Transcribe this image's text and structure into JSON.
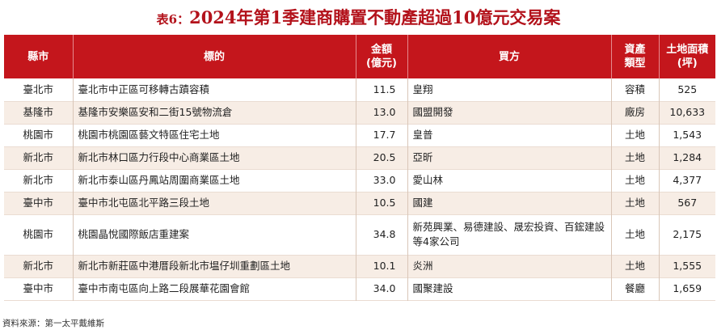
{
  "title": {
    "label": "表6：",
    "text": "2024年第1季建商購置不動產超過10億元交易案"
  },
  "headers": {
    "city": "縣市",
    "target": "標的",
    "amount_l1": "金額",
    "amount_l2": "(億元)",
    "buyer": "買方",
    "type_l1": "資產",
    "type_l2": "類型",
    "area_l1": "土地面積",
    "area_l2": "(坪)"
  },
  "rows": [
    {
      "city": "臺北市",
      "target": "臺北市中正區可移轉古蹟容積",
      "amount": "11.5",
      "buyer": "皇翔",
      "type": "容積",
      "area": "525"
    },
    {
      "city": "基隆市",
      "target": "基隆市安樂區安和二街15號物流倉",
      "amount": "13.0",
      "buyer": "國盟開發",
      "type": "廠房",
      "area": "10,633"
    },
    {
      "city": "桃園市",
      "target": "桃園市桃園區藝文特區住宅土地",
      "amount": "17.7",
      "buyer": "皇普",
      "type": "土地",
      "area": "1,543"
    },
    {
      "city": "新北市",
      "target": "新北市林口區力行段中心商業區土地",
      "amount": "20.5",
      "buyer": "亞昕",
      "type": "土地",
      "area": "1,284"
    },
    {
      "city": "新北市",
      "target": "新北市泰山區丹鳳站周圍商業區土地",
      "amount": "33.0",
      "buyer": "愛山林",
      "type": "土地",
      "area": "4,377"
    },
    {
      "city": "臺中市",
      "target": "臺中市北屯區北平路三段土地",
      "amount": "10.5",
      "buyer": "國建",
      "type": "土地",
      "area": "567"
    },
    {
      "city": "桃園市",
      "target": "桃園晶悅國際飯店重建案",
      "amount": "34.8",
      "buyer": "新苑興業、易德建設、晟宏投資、百鋐建設等4家公司",
      "type": "土地",
      "area": "2,175"
    },
    {
      "city": "新北市",
      "target": "新北市新莊區中港厝段新北市塭仔圳重劃區土地",
      "amount": "10.1",
      "buyer": "炎洲",
      "type": "土地",
      "area": "1,555"
    },
    {
      "city": "臺中市",
      "target": "臺中市南屯區向上路二段展華花園會館",
      "amount": "34.0",
      "buyer": "國聚建設",
      "type": "餐廳",
      "area": "1,659"
    }
  ],
  "source": "資料來源：第一太平戴維斯"
}
